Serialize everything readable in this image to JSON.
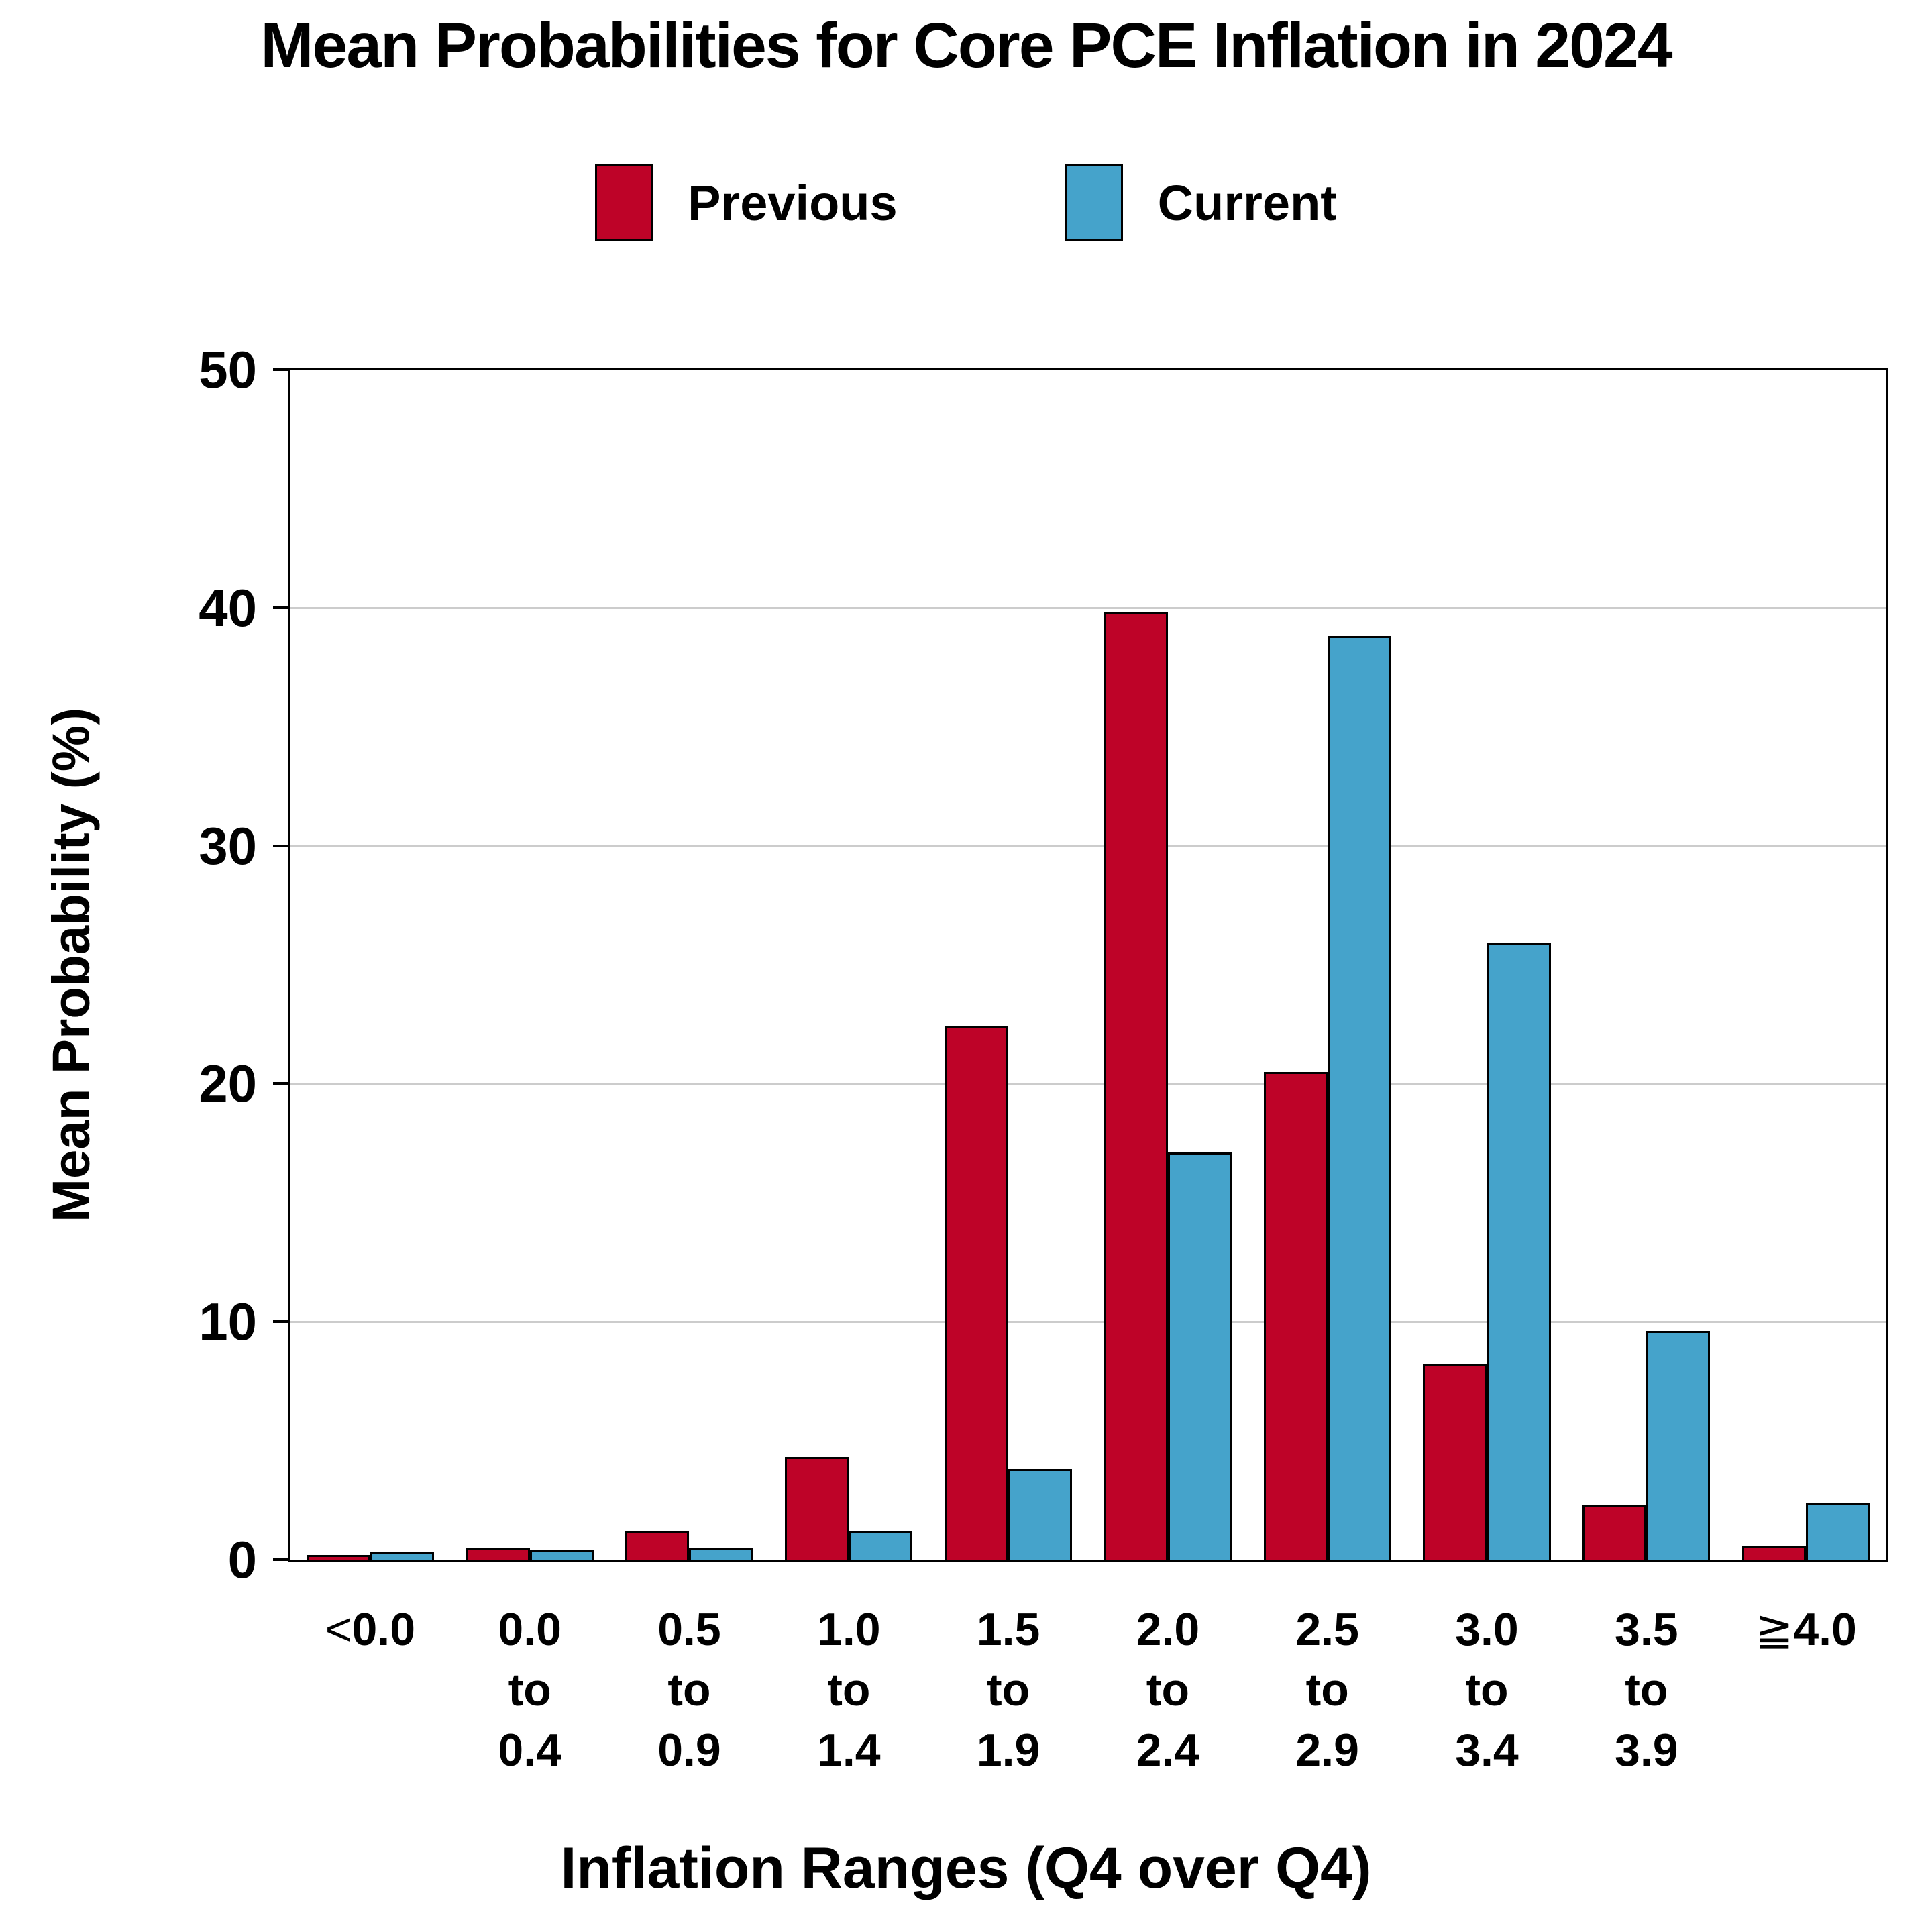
{
  "title": "Mean Probabilities for Core PCE Inflation in 2024",
  "legend": {
    "position": "top-center",
    "entries": [
      {
        "label": "Previous",
        "color": "#BE0328"
      },
      {
        "label": "Current",
        "color": "#45A3CB"
      }
    ]
  },
  "colors": {
    "previous": "#BE0328",
    "current": "#45A3CB",
    "gridline": "#CCCCCC",
    "axis_frame": "#000000",
    "background": "#FFFFFF"
  },
  "chart_data": {
    "type": "bar",
    "title": "Mean Probabilities for Core PCE Inflation in 2024",
    "xlabel": "Inflation Ranges (Q4 over Q4)",
    "ylabel": "Mean Probability (%)",
    "ylim": [
      0,
      50
    ],
    "yticks": [
      0,
      10,
      20,
      30,
      40,
      50
    ],
    "grid": "horizontal gray lines at 10, 20, 30, 40; full black frame around plot",
    "legend_position": "top-center",
    "categories": [
      "<0.0",
      "0.0 to 0.4",
      "0.5 to 0.9",
      "1.0 to 1.4",
      "1.5 to 1.9",
      "2.0 to 2.4",
      "2.5 to 2.9",
      "3.0 to 3.4",
      "3.5 to 3.9",
      "≧4.0"
    ],
    "category_label_lines": [
      [
        "<0.0"
      ],
      [
        "0.0",
        "to",
        "0.4"
      ],
      [
        "0.5",
        "to",
        "0.9"
      ],
      [
        "1.0",
        "to",
        "1.4"
      ],
      [
        "1.5",
        "to",
        "1.9"
      ],
      [
        "2.0",
        "to",
        "2.4"
      ],
      [
        "2.5",
        "to",
        "2.9"
      ],
      [
        "3.0",
        "to",
        "3.4"
      ],
      [
        "3.5",
        "to",
        "3.9"
      ],
      [
        "≧4.0"
      ]
    ],
    "series": [
      {
        "name": "Previous",
        "color": "#BE0328",
        "values": [
          0.2,
          0.5,
          1.2,
          4.3,
          22.4,
          39.8,
          20.5,
          8.2,
          2.3,
          0.6
        ]
      },
      {
        "name": "Current",
        "color": "#45A3CB",
        "values": [
          0.3,
          0.4,
          0.5,
          1.2,
          3.8,
          17.1,
          38.8,
          25.9,
          9.6,
          2.4
        ]
      }
    ]
  }
}
